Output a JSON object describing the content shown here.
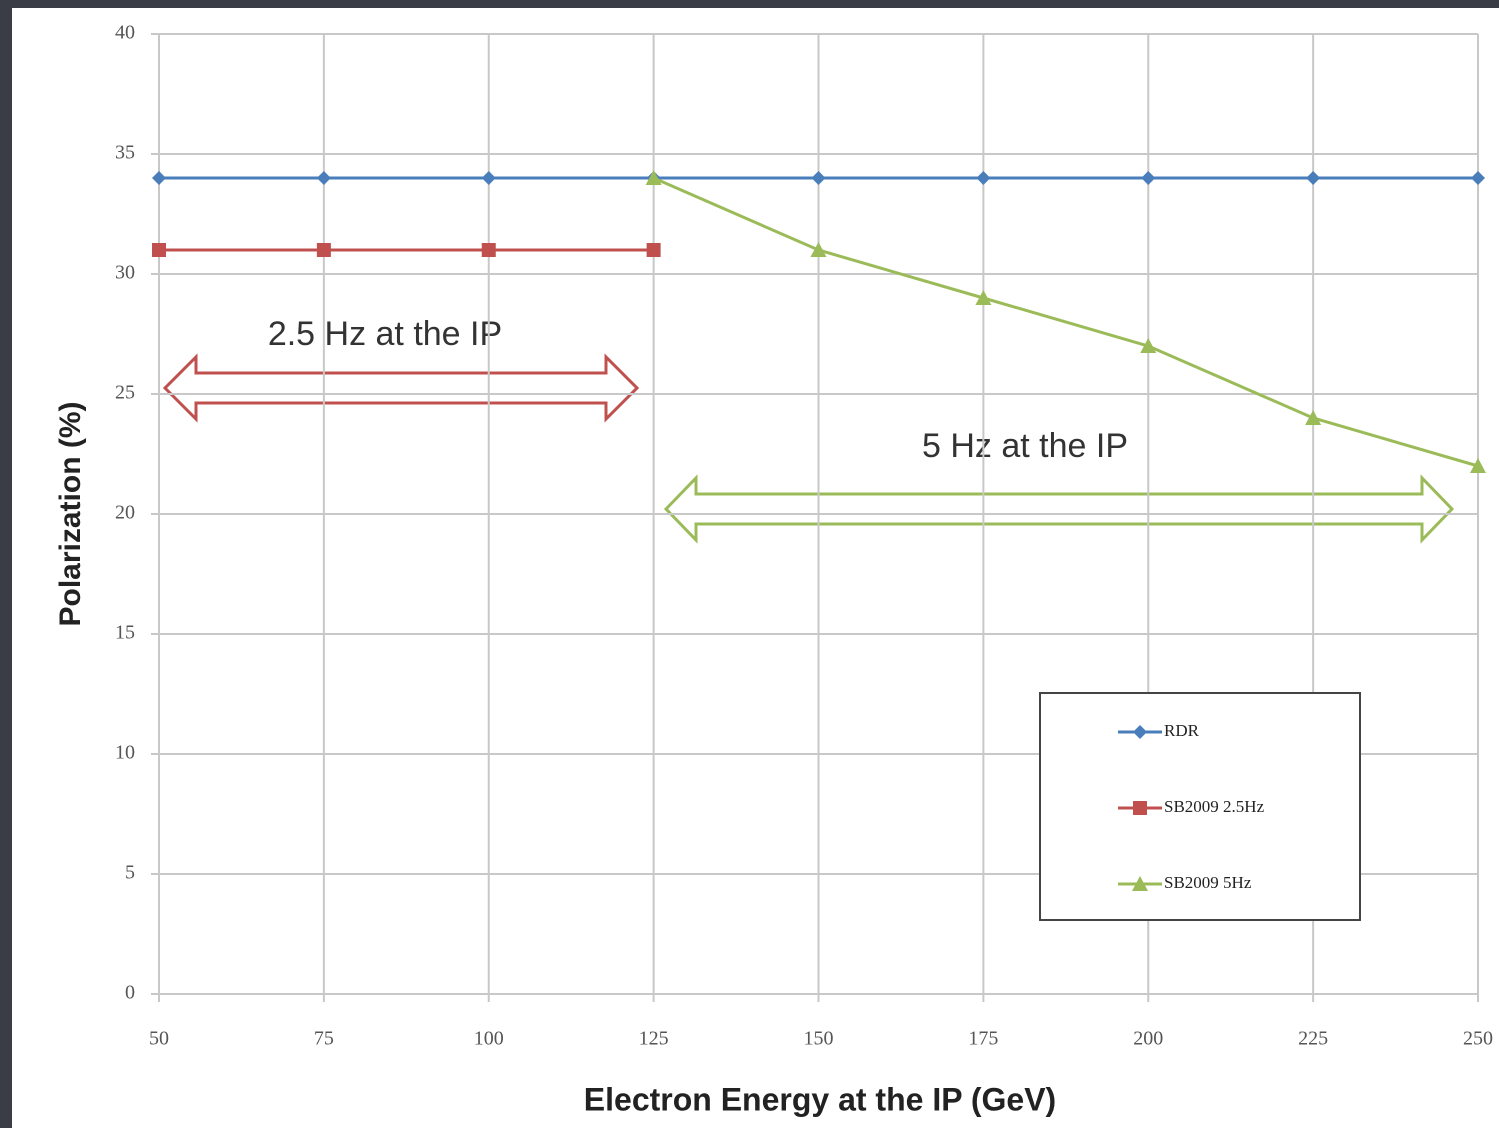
{
  "chart_data": {
    "type": "line",
    "x_label": "Electron Energy at the IP (GeV)",
    "y_label": "Polarization (%)",
    "x": [
      50,
      75,
      100,
      125,
      150,
      175,
      200,
      225,
      250
    ],
    "series": [
      {
        "name": "RDR",
        "color": "#4a7ebb",
        "marker": "diamond",
        "values": [
          34,
          34,
          34,
          34,
          34,
          34,
          34,
          34,
          34
        ]
      },
      {
        "name": "SB2009 2.5Hz",
        "color": "#c0504d",
        "marker": "square",
        "values": [
          31,
          31,
          31,
          31,
          null,
          null,
          null,
          null,
          null
        ]
      },
      {
        "name": "SB2009 5Hz",
        "color": "#9bbb59",
        "marker": "triangle",
        "values": [
          null,
          null,
          null,
          34,
          31,
          29,
          27,
          24,
          22
        ]
      }
    ],
    "xlim": [
      50,
      250
    ],
    "xticks": [
      50,
      75,
      100,
      125,
      150,
      175,
      200,
      225,
      250
    ],
    "ylim": [
      0,
      40
    ],
    "yticks": [
      0,
      5,
      10,
      15,
      20,
      25,
      30,
      35,
      40
    ],
    "grid": true,
    "annotations": [
      "2.5 Hz at the IP",
      "5 Hz at the IP"
    ]
  }
}
